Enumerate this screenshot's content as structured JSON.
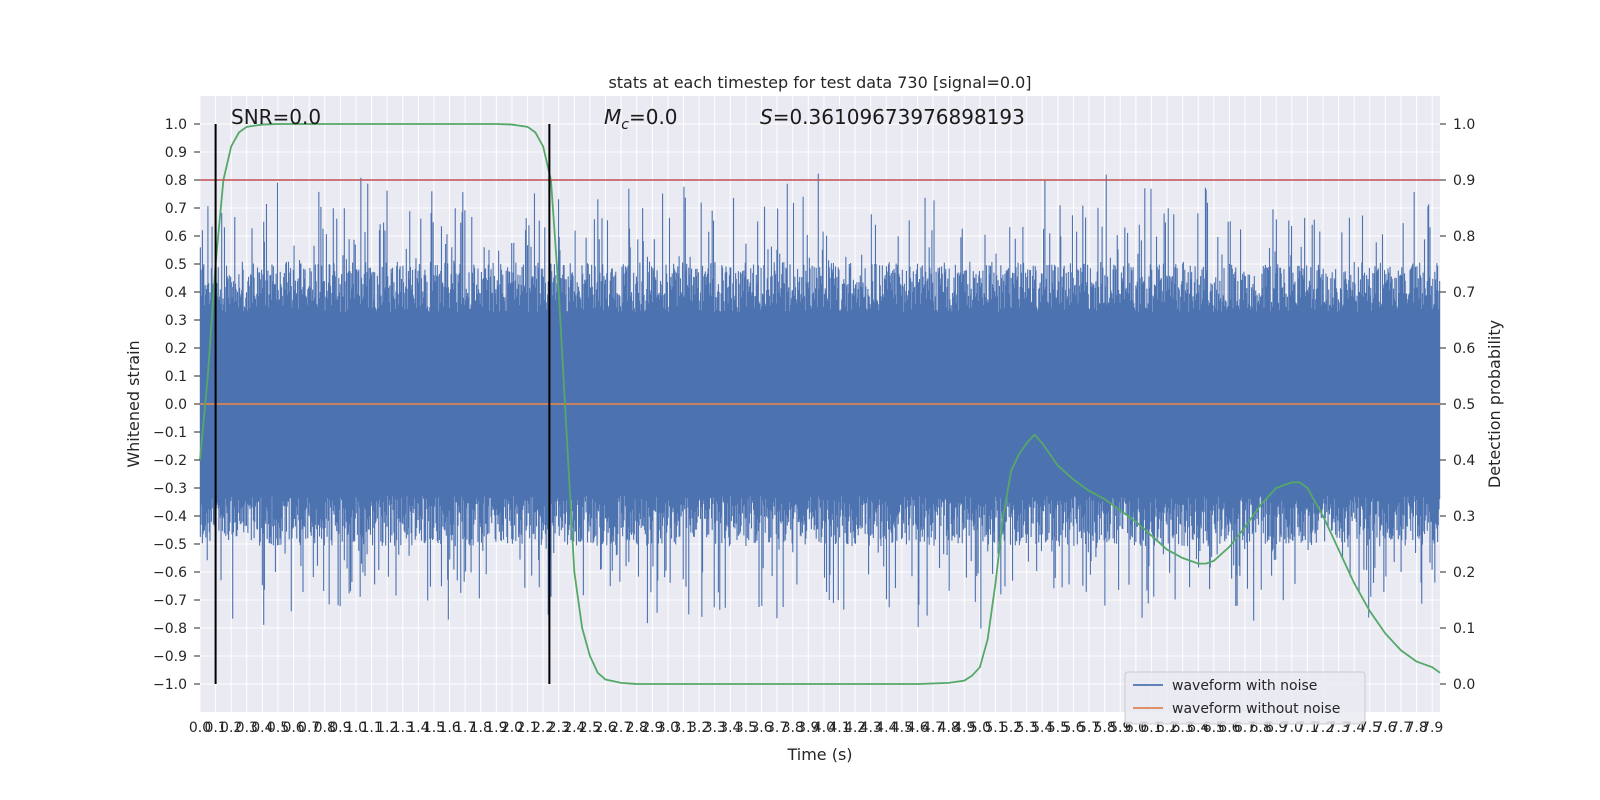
{
  "chart_data": {
    "type": "line",
    "title": "stats at each timestep for test data 730 [signal=0.0]",
    "xlabel": "Time (s)",
    "ylabel": "Whitened strain",
    "y2label": "Detection probability",
    "xlim": [
      0.0,
      7.95
    ],
    "ylim": [
      -1.1,
      1.1
    ],
    "y2lim": [
      -0.05,
      1.05
    ],
    "xticks": [
      0.0,
      0.1,
      0.2,
      0.3,
      0.4,
      0.5,
      0.6,
      0.7,
      0.8,
      0.9,
      1.0,
      1.1,
      1.2,
      1.3,
      1.4,
      1.5,
      1.6,
      1.7,
      1.8,
      1.9,
      2.0,
      2.1,
      2.2,
      2.3,
      2.4,
      2.5,
      2.6,
      2.7,
      2.8,
      2.9,
      3.0,
      3.1,
      3.2,
      3.3,
      3.4,
      3.5,
      3.6,
      3.7,
      3.8,
      3.9,
      4.0,
      4.1,
      4.2,
      4.3,
      4.4,
      4.5,
      4.6,
      4.7,
      4.8,
      4.9,
      5.0,
      5.1,
      5.2,
      5.3,
      5.4,
      5.5,
      5.6,
      5.7,
      5.8,
      5.9,
      6.0,
      6.1,
      6.2,
      6.3,
      6.4,
      6.5,
      6.6,
      6.7,
      6.8,
      6.9,
      7.0,
      7.1,
      7.2,
      7.3,
      7.4,
      7.5,
      7.6,
      7.7,
      7.8,
      7.9
    ],
    "yticks": [
      1.0,
      0.9,
      0.8,
      0.7,
      0.6,
      0.5,
      0.4,
      0.3,
      0.2,
      0.1,
      0.0,
      -0.1,
      -0.2,
      -0.3,
      -0.4,
      -0.5,
      -0.6,
      -0.7,
      -0.8,
      -0.9,
      -1.0
    ],
    "y2ticks": [
      1.0,
      0.9,
      0.8,
      0.7,
      0.6,
      0.5,
      0.4,
      0.3,
      0.2,
      0.1,
      0.0
    ],
    "annotations": {
      "snr": "SNR=0.0",
      "mc_symbol": "M",
      "mc_sub": "c",
      "mc_value": "=0.0",
      "s_symbol": "S",
      "s_value": "=0.36109673976898193"
    },
    "threshold": {
      "y2": 0.9,
      "color": "#c44e52"
    },
    "vlines": [
      0.1,
      2.24
    ],
    "series": [
      {
        "name": "waveform with noise",
        "color": "#4c72b0",
        "axis": "left",
        "style": "noise",
        "envelope_positive": 0.4,
        "envelope_negative": -0.4
      },
      {
        "name": "waveform without noise",
        "color": "#dd8452",
        "axis": "left",
        "values": [
          [
            0.0,
            0.0
          ],
          [
            7.95,
            0.0
          ]
        ]
      },
      {
        "name": "",
        "color": "#55a868",
        "axis": "right",
        "values": [
          [
            0.0,
            0.4
          ],
          [
            0.05,
            0.55
          ],
          [
            0.1,
            0.75
          ],
          [
            0.15,
            0.9
          ],
          [
            0.2,
            0.96
          ],
          [
            0.25,
            0.985
          ],
          [
            0.3,
            0.995
          ],
          [
            0.4,
            0.999
          ],
          [
            0.5,
            1.0
          ],
          [
            1.0,
            1.0
          ],
          [
            1.5,
            1.0
          ],
          [
            1.9,
            1.0
          ],
          [
            2.0,
            0.999
          ],
          [
            2.1,
            0.995
          ],
          [
            2.15,
            0.985
          ],
          [
            2.2,
            0.96
          ],
          [
            2.25,
            0.9
          ],
          [
            2.3,
            0.7
          ],
          [
            2.35,
            0.45
          ],
          [
            2.4,
            0.2
          ],
          [
            2.45,
            0.1
          ],
          [
            2.5,
            0.05
          ],
          [
            2.55,
            0.02
          ],
          [
            2.6,
            0.008
          ],
          [
            2.7,
            0.002
          ],
          [
            2.8,
            0.0
          ],
          [
            3.0,
            0.0
          ],
          [
            4.0,
            0.0
          ],
          [
            4.6,
            0.0
          ],
          [
            4.8,
            0.002
          ],
          [
            4.9,
            0.006
          ],
          [
            4.95,
            0.015
          ],
          [
            5.0,
            0.03
          ],
          [
            5.05,
            0.08
          ],
          [
            5.1,
            0.18
          ],
          [
            5.15,
            0.3
          ],
          [
            5.2,
            0.38
          ],
          [
            5.25,
            0.41
          ],
          [
            5.3,
            0.43
          ],
          [
            5.35,
            0.445
          ],
          [
            5.4,
            0.43
          ],
          [
            5.5,
            0.39
          ],
          [
            5.6,
            0.365
          ],
          [
            5.7,
            0.345
          ],
          [
            5.8,
            0.33
          ],
          [
            5.9,
            0.31
          ],
          [
            6.0,
            0.29
          ],
          [
            6.1,
            0.265
          ],
          [
            6.2,
            0.24
          ],
          [
            6.3,
            0.225
          ],
          [
            6.4,
            0.215
          ],
          [
            6.45,
            0.215
          ],
          [
            6.5,
            0.22
          ],
          [
            6.6,
            0.245
          ],
          [
            6.7,
            0.28
          ],
          [
            6.8,
            0.32
          ],
          [
            6.9,
            0.35
          ],
          [
            7.0,
            0.36
          ],
          [
            7.05,
            0.36
          ],
          [
            7.1,
            0.35
          ],
          [
            7.2,
            0.3
          ],
          [
            7.3,
            0.24
          ],
          [
            7.4,
            0.18
          ],
          [
            7.5,
            0.13
          ],
          [
            7.6,
            0.09
          ],
          [
            7.7,
            0.06
          ],
          [
            7.8,
            0.04
          ],
          [
            7.9,
            0.03
          ],
          [
            7.95,
            0.02
          ]
        ]
      }
    ],
    "legend": {
      "placement": "lower-right"
    }
  }
}
